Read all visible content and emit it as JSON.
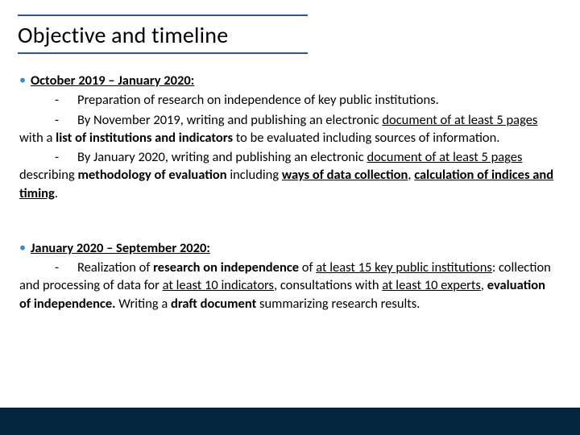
{
  "colors": {
    "rule": "#2f5597",
    "bullet": "#2f8dcb",
    "footer": "#04263f",
    "text": "#000000",
    "background": "#ffffff"
  },
  "typography": {
    "title_fontsize": 28,
    "body_fontsize": 16.5,
    "line_height": 1.35,
    "font_family": "Calibri"
  },
  "title": "Objective and timeline",
  "sections": [
    {
      "heading": "October 2019 – January 2020:",
      "items": [
        {
          "runs": [
            {
              "t": "Preparation of research on independence of key public institutions.",
              "style": ""
            }
          ]
        },
        {
          "runs": [
            {
              "t": "By November 2019, writing and publishing an electronic ",
              "style": ""
            },
            {
              "t": "document of at least 5 pages",
              "style": "u"
            },
            {
              "t": " with a ",
              "style": ""
            },
            {
              "t": "list of institutions and indicators",
              "style": "b"
            },
            {
              "t": " to be evaluated including sources of information.",
              "style": ""
            }
          ]
        },
        {
          "runs": [
            {
              "t": "By January 2020, writing and publishing an electronic ",
              "style": ""
            },
            {
              "t": "document of at least 5 pages",
              "style": "u"
            },
            {
              "t": " describing ",
              "style": ""
            },
            {
              "t": "methodology of evaluation",
              "style": "b"
            },
            {
              "t": " including ",
              "style": ""
            },
            {
              "t": "ways of data collection",
              "style": "bu"
            },
            {
              "t": ", ",
              "style": ""
            },
            {
              "t": "calculation of indices and timing",
              "style": "bu"
            },
            {
              "t": ".",
              "style": ""
            }
          ]
        }
      ]
    },
    {
      "heading": "January 2020 – September 2020:",
      "items": [
        {
          "runs": [
            {
              "t": "Realization of ",
              "style": ""
            },
            {
              "t": "research on independence",
              "style": "b"
            },
            {
              "t": " of ",
              "style": ""
            },
            {
              "t": "at least 15 key public institutions",
              "style": "u"
            },
            {
              "t": ": collection and processing of data for ",
              "style": ""
            },
            {
              "t": "at least 10 indicators",
              "style": "u"
            },
            {
              "t": ", consultations with ",
              "style": ""
            },
            {
              "t": "at least 10 experts",
              "style": "u"
            },
            {
              "t": ", ",
              "style": ""
            },
            {
              "t": "evaluation of independence.",
              "style": "b"
            },
            {
              "t": " Writing a ",
              "style": ""
            },
            {
              "t": "draft document",
              "style": "b"
            },
            {
              "t": " summarizing research results.",
              "style": ""
            }
          ]
        }
      ]
    }
  ]
}
